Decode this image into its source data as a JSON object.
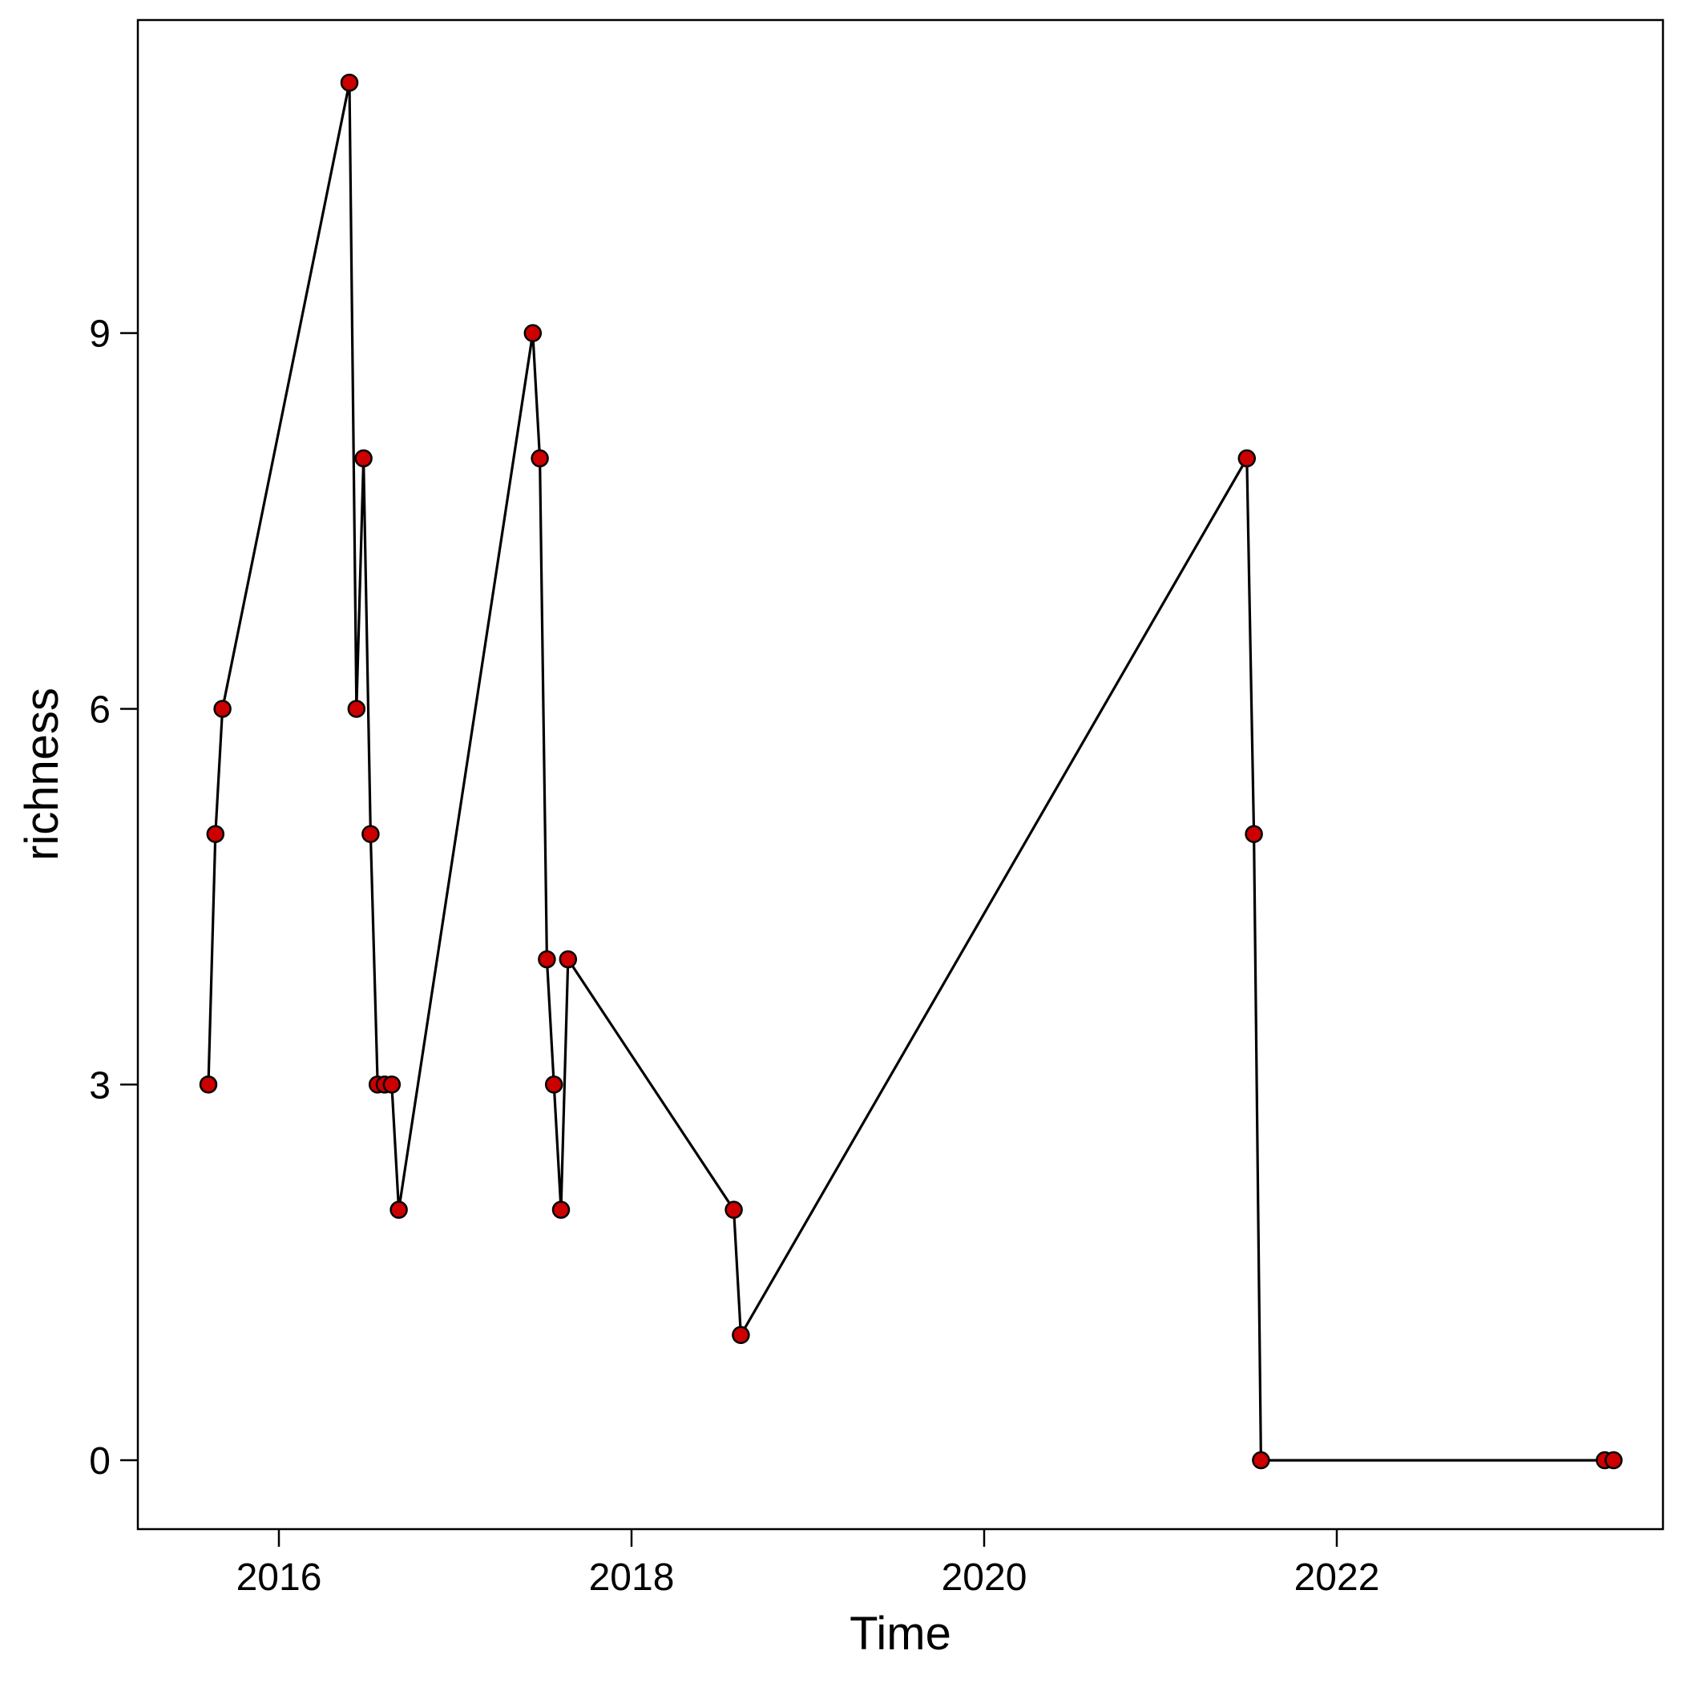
{
  "chart_data": {
    "type": "line",
    "title": "",
    "xlabel": "Time",
    "ylabel": "richness",
    "xlim": [
      2015.2,
      2023.85
    ],
    "ylim": [
      -0.55,
      11.5
    ],
    "x_ticks": [
      2016,
      2018,
      2020,
      2022
    ],
    "y_ticks": [
      0,
      3,
      6,
      9
    ],
    "x_tick_labels": [
      "2016",
      "2018",
      "2020",
      "2022"
    ],
    "y_tick_labels": [
      "0",
      "3",
      "6",
      "9"
    ],
    "grid": false,
    "legend": "none",
    "colors": {
      "line": "#000000",
      "marker_fill": "#cc0000",
      "marker_edge": "#000000"
    },
    "series": [
      {
        "x": [
          2015.6,
          2015.64,
          2015.68,
          2016.4,
          2016.44,
          2016.48,
          2016.52,
          2016.56,
          2016.6,
          2016.64,
          2016.68,
          2017.44,
          2017.48,
          2017.52,
          2017.56,
          2017.6,
          2017.64,
          2018.58,
          2018.62,
          2021.49,
          2021.53,
          2021.57,
          2023.52,
          2023.57
        ],
        "y": [
          3,
          5,
          6,
          11,
          6,
          8,
          5,
          3,
          3,
          3,
          2,
          9,
          8,
          4,
          3,
          2,
          4,
          2,
          1,
          8,
          5,
          0,
          0,
          0
        ]
      }
    ]
  }
}
